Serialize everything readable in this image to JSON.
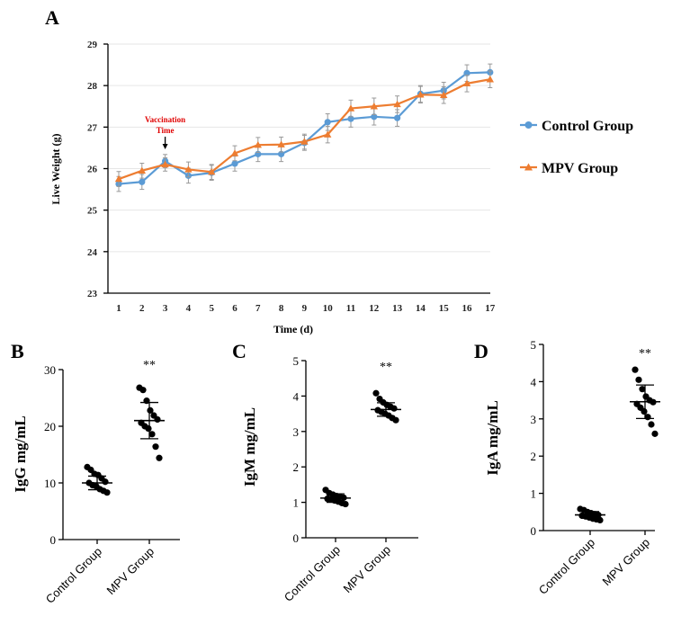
{
  "colors": {
    "control": "#5b9bd5",
    "mpv": "#ed7d31",
    "errorbar": "#999999",
    "annotation": "#e00000",
    "dots": "#000000"
  },
  "chart_data": [
    {
      "id": "A",
      "panel_label": "A",
      "type": "line",
      "xlabel": "Time (d)",
      "ylabel": "Live Weight (g)",
      "x": [
        1,
        2,
        3,
        4,
        5,
        6,
        7,
        8,
        9,
        10,
        11,
        12,
        13,
        14,
        15,
        16,
        17
      ],
      "xticks": [
        "1",
        "2",
        "3",
        "4",
        "5",
        "6",
        "7",
        "8",
        "9",
        "10",
        "11",
        "12",
        "13",
        "14",
        "15",
        "16",
        "17"
      ],
      "ylim": [
        23,
        29
      ],
      "yticks": [
        "23",
        "24",
        "25",
        "26",
        "27",
        "28",
        "29"
      ],
      "grid": true,
      "legend": "right",
      "series": [
        {
          "name": "Control Group",
          "marker": "circle",
          "values": [
            25.63,
            25.68,
            26.18,
            25.83,
            25.9,
            26.12,
            26.35,
            26.35,
            26.62,
            27.12,
            27.2,
            27.25,
            27.22,
            27.8,
            27.88,
            28.3,
            28.32
          ],
          "errors": [
            0.18,
            0.18,
            0.16,
            0.18,
            0.18,
            0.18,
            0.18,
            0.18,
            0.18,
            0.2,
            0.2,
            0.2,
            0.2,
            0.2,
            0.2,
            0.2,
            0.2
          ]
        },
        {
          "name": "MPV Group",
          "marker": "triangle",
          "values": [
            25.75,
            25.95,
            26.1,
            25.98,
            25.92,
            26.37,
            26.57,
            26.58,
            26.65,
            26.82,
            27.45,
            27.5,
            27.55,
            27.78,
            27.77,
            28.05,
            28.15
          ],
          "errors": [
            0.18,
            0.18,
            0.16,
            0.18,
            0.18,
            0.18,
            0.18,
            0.18,
            0.18,
            0.2,
            0.2,
            0.2,
            0.2,
            0.2,
            0.2,
            0.2,
            0.2
          ]
        }
      ],
      "annotation": {
        "line1": "Vaccination",
        "line2": "Time",
        "at_x": 3
      }
    },
    {
      "id": "B",
      "panel_label": "B",
      "type": "scatter",
      "ylabel": "IgG mg/mL",
      "ylim": [
        0,
        30
      ],
      "yticks": [
        "0",
        "10",
        "20",
        "30"
      ],
      "categories": [
        "Control Group",
        "MPV Group"
      ],
      "significance": "**",
      "groups": [
        {
          "name": "Control Group",
          "mean": 10.0,
          "sd": 1.2,
          "points": [
            12.8,
            12.3,
            11.6,
            11.4,
            10.8,
            10.2,
            10.0,
            9.6,
            9.4,
            8.9,
            8.6,
            8.3
          ]
        },
        {
          "name": "MPV Group",
          "mean": 21.0,
          "sd": 3.2,
          "points": [
            26.8,
            26.4,
            24.5,
            22.8,
            21.9,
            21.2,
            20.6,
            20.0,
            19.6,
            18.6,
            16.4,
            14.4
          ]
        }
      ]
    },
    {
      "id": "C",
      "panel_label": "C",
      "type": "scatter",
      "ylabel": "IgM mg/mL",
      "ylim": [
        0,
        5
      ],
      "yticks": [
        "0",
        "1",
        "2",
        "3",
        "4",
        "5"
      ],
      "categories": [
        "Control Group",
        "MPV Group"
      ],
      "significance": "**",
      "groups": [
        {
          "name": "Control Group",
          "mean": 1.12,
          "sd": 0.12,
          "points": [
            1.35,
            1.26,
            1.22,
            1.18,
            1.16,
            1.13,
            1.1,
            1.08,
            1.05,
            1.02,
            0.98,
            0.95
          ]
        },
        {
          "name": "MPV Group",
          "mean": 3.62,
          "sd": 0.19,
          "points": [
            4.08,
            3.92,
            3.82,
            3.75,
            3.7,
            3.65,
            3.6,
            3.55,
            3.5,
            3.45,
            3.38,
            3.32
          ]
        }
      ]
    },
    {
      "id": "D",
      "panel_label": "D",
      "type": "scatter",
      "ylabel": "IgA mg/mL",
      "ylim": [
        0,
        5
      ],
      "yticks": [
        "0",
        "1",
        "2",
        "3",
        "4",
        "5"
      ],
      "categories": [
        "Control Group",
        "MPV Group"
      ],
      "significance": "**",
      "groups": [
        {
          "name": "Control Group",
          "mean": 0.42,
          "sd": 0.09,
          "points": [
            0.58,
            0.55,
            0.5,
            0.47,
            0.44,
            0.42,
            0.4,
            0.38,
            0.35,
            0.32,
            0.3,
            0.28
          ]
        },
        {
          "name": "MPV Group",
          "mean": 3.46,
          "sd": 0.45,
          "points": [
            4.32,
            4.05,
            3.8,
            3.6,
            3.5,
            3.45,
            3.4,
            3.3,
            3.2,
            3.05,
            2.85,
            2.6
          ]
        }
      ]
    }
  ]
}
